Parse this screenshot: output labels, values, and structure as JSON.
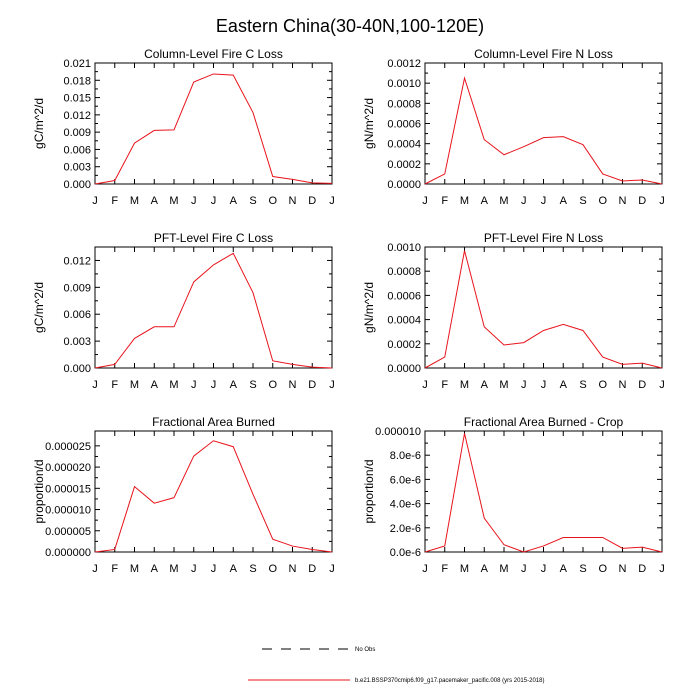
{
  "figure": {
    "title": "Eastern China(30-40N,100-120E)"
  },
  "legend": {
    "items": [
      {
        "label": "No Obs",
        "style": "dashed",
        "color": "#000000"
      },
      {
        "label": "b.e21.BSSP370cmip6.f09_g17.pacemaker_pacific.008 (yrs 2015-2018)",
        "style": "solid",
        "color": "#e8141c"
      }
    ]
  },
  "colors": {
    "series": "#e8141c",
    "axis": "#000000"
  },
  "chart_data": [
    {
      "type": "line",
      "title": "Column-Level Fire C Loss",
      "ylabel": "gC/m^2/d",
      "xlabel": "",
      "categories": [
        "J",
        "F",
        "M",
        "A",
        "M",
        "J",
        "J",
        "A",
        "S",
        "O",
        "N",
        "D",
        "J"
      ],
      "ylim": [
        0,
        0.021
      ],
      "yticks": [
        "0.000",
        "0.003",
        "0.006",
        "0.009",
        "0.012",
        "0.015",
        "0.018",
        "0.021"
      ],
      "series": [
        {
          "values": [
            0.0,
            0.0006,
            0.0071,
            0.0093,
            0.0094,
            0.0177,
            0.0191,
            0.0189,
            0.0124,
            0.0013,
            0.0008,
            0.0002,
            0.0001
          ]
        }
      ]
    },
    {
      "type": "line",
      "title": "Column-Level Fire N Loss",
      "ylabel": "gN/m^2/d",
      "xlabel": "",
      "categories": [
        "J",
        "F",
        "M",
        "A",
        "M",
        "J",
        "J",
        "A",
        "S",
        "O",
        "N",
        "D",
        "J"
      ],
      "ylim": [
        0,
        0.0012
      ],
      "yticks": [
        "0.0000",
        "0.0002",
        "0.0004",
        "0.0006",
        "0.0008",
        "0.0010",
        "0.0012"
      ],
      "series": [
        {
          "values": [
            0.0,
            0.0001,
            0.00105,
            0.00044,
            0.00029,
            0.00037,
            0.00046,
            0.00047,
            0.00039,
            0.0001,
            3e-05,
            4e-05,
            0.0
          ]
        }
      ]
    },
    {
      "type": "line",
      "title": "PFT-Level Fire C Loss",
      "ylabel": "gC/m^2/d",
      "xlabel": "",
      "categories": [
        "J",
        "F",
        "M",
        "A",
        "M",
        "J",
        "J",
        "A",
        "S",
        "O",
        "N",
        "D",
        "J"
      ],
      "ylim": [
        0,
        0.0135
      ],
      "yticks": [
        "0.000",
        "0.003",
        "0.006",
        "0.009",
        "0.012"
      ],
      "series": [
        {
          "values": [
            0.0,
            0.0004,
            0.0033,
            0.0046,
            0.0046,
            0.0096,
            0.0115,
            0.0128,
            0.0084,
            0.0008,
            0.0004,
            0.0001,
            0.0
          ]
        }
      ]
    },
    {
      "type": "line",
      "title": "PFT-Level Fire N Loss",
      "ylabel": "gN/m^2/d",
      "xlabel": "",
      "categories": [
        "J",
        "F",
        "M",
        "A",
        "M",
        "J",
        "J",
        "A",
        "S",
        "O",
        "N",
        "D",
        "J"
      ],
      "ylim": [
        0,
        0.001
      ],
      "yticks": [
        "0.0000",
        "0.0002",
        "0.0004",
        "0.0006",
        "0.0008",
        "0.0010"
      ],
      "series": [
        {
          "values": [
            0.0,
            9e-05,
            0.00097,
            0.00034,
            0.00019,
            0.00021,
            0.00031,
            0.00036,
            0.00031,
            9e-05,
            3e-05,
            4e-05,
            0.0
          ]
        }
      ]
    },
    {
      "type": "line",
      "title": "Fractional Area Burned",
      "ylabel": "proportion/d",
      "xlabel": "",
      "categories": [
        "J",
        "F",
        "M",
        "A",
        "M",
        "J",
        "J",
        "A",
        "S",
        "O",
        "N",
        "D",
        "J"
      ],
      "ylim": [
        0,
        2.85e-05
      ],
      "yticks": [
        "0.000000",
        "0.000005",
        "0.000010",
        "0.000015",
        "0.000020",
        "0.000025"
      ],
      "series": [
        {
          "values": [
            0.0,
            6e-07,
            1.54e-05,
            1.15e-05,
            1.28e-05,
            2.26e-05,
            2.62e-05,
            2.48e-05,
            1.36e-05,
            3e-06,
            1.4e-06,
            6e-07,
            0.0
          ]
        }
      ]
    },
    {
      "type": "line",
      "title": "Fractional Area Burned - Crop",
      "ylabel": "proportion/d",
      "xlabel": "",
      "categories": [
        "J",
        "F",
        "M",
        "A",
        "M",
        "J",
        "J",
        "A",
        "S",
        "O",
        "N",
        "D",
        "J"
      ],
      "ylim": [
        0,
        1e-05
      ],
      "yticks": [
        "0.0e-6",
        "2.0e-6",
        "4.0e-6",
        "6.0e-6",
        "8.0e-6",
        "0.000010"
      ],
      "series": [
        {
          "values": [
            0.0,
            5e-07,
            9.8e-06,
            2.8e-06,
            6e-07,
            0.0,
            5e-07,
            1.2e-06,
            1.2e-06,
            1.2e-06,
            3e-07,
            4e-07,
            0.0
          ]
        }
      ]
    }
  ]
}
